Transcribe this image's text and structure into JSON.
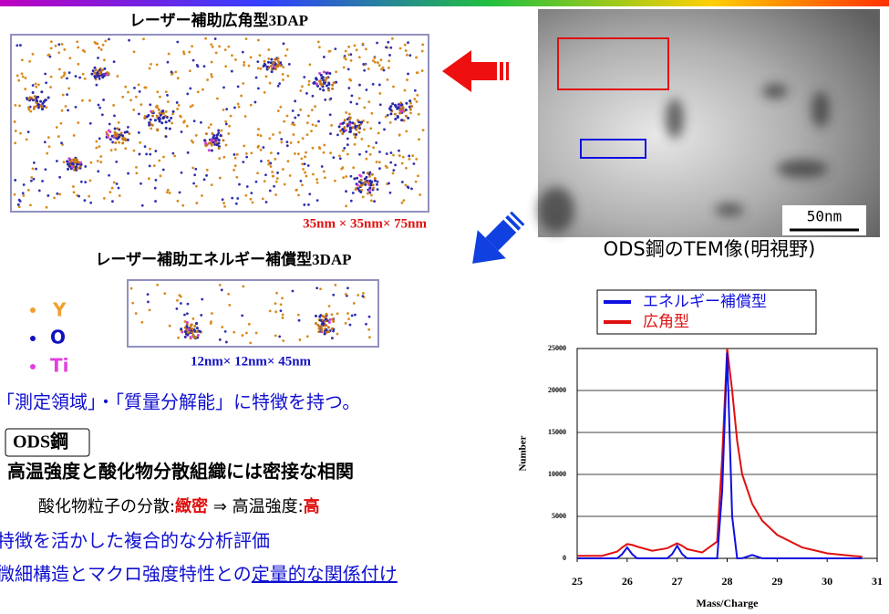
{
  "wide_angle": {
    "title": "レーザー補助広角型3DAP",
    "size": "35nm × 35nm× 75nm"
  },
  "energy_comp": {
    "title": "レーザー補助エネルギー補償型3DAP",
    "size": "12nm× 12nm× 45nm"
  },
  "atoms": [
    "Y",
    "O",
    "Ti"
  ],
  "tem": {
    "scale": "50nm",
    "caption": "ODS鋼のTEM像(明視野)"
  },
  "text": {
    "line1": "「測定領域」・「質量分解能」に特徴を持つ。",
    "ods_label": "ODS鋼",
    "line2": "高温強度と酸化物分散組織には密接な相関",
    "line3": [
      "酸化物粒子の分散:",
      "緻密",
      " ⇒  高温強度:",
      "高"
    ],
    "line4": "特徴を活かした複合的な分析評価",
    "line5": [
      "微細構造とマクロ強度特性との",
      "定量的な関係付け"
    ]
  },
  "chart_data": {
    "type": "line",
    "x_label": "Mass/Charge",
    "y_label": "Number",
    "x": [
      25,
      25.5,
      25.8,
      25.9,
      26,
      26.1,
      26.2,
      26.5,
      26.8,
      26.9,
      27,
      27.1,
      27.2,
      27.5,
      27.8,
      27.9,
      28,
      28.1,
      28.2,
      28.3,
      28.5,
      28.7,
      29,
      29.5,
      30,
      30.5,
      30.7
    ],
    "series": [
      {
        "name": "エネルギー補償型",
        "color": "#1010e0",
        "values": [
          0,
          0,
          0,
          500,
          1300,
          500,
          0,
          0,
          0,
          500,
          1500,
          500,
          0,
          0,
          0,
          8000,
          24500,
          5000,
          0,
          0,
          400,
          0,
          0,
          0,
          0,
          0,
          0
        ]
      },
      {
        "name": "広角型",
        "color": "#e01010",
        "values": [
          300,
          300,
          800,
          1300,
          1700,
          1600,
          1400,
          900,
          1200,
          1500,
          1800,
          1500,
          1100,
          700,
          2000,
          12000,
          25000,
          20000,
          14000,
          10000,
          6500,
          4500,
          2800,
          1300,
          600,
          300,
          200
        ]
      }
    ],
    "xlim": [
      25,
      31
    ],
    "ylim": [
      0,
      25000
    ],
    "xticks": [
      25,
      26,
      27,
      28,
      29,
      30,
      31
    ],
    "yticks": [
      0,
      5000,
      10000,
      15000,
      20000,
      25000
    ],
    "grid": true
  }
}
